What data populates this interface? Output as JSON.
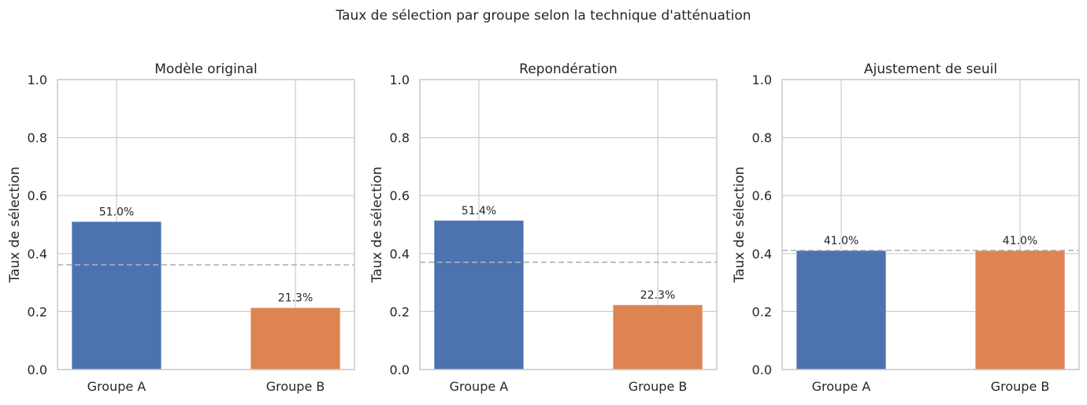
{
  "suptitle": "Taux de sélection par groupe selon la technique d'atténuation",
  "colors": {
    "group_a": "#4c72b0",
    "group_b": "#dd8452",
    "grid": "#cccccc",
    "reference_line": "#b0b0b0"
  },
  "chart_data": [
    {
      "type": "bar",
      "title": "Modèle original",
      "ylabel": "Taux de sélection",
      "xlabel": "",
      "categories": [
        "Groupe A",
        "Groupe B"
      ],
      "values": [
        0.51,
        0.213
      ],
      "data_labels": [
        "51.0%",
        "21.3%"
      ],
      "reference_line": 0.361,
      "ylim": [
        0,
        1.0
      ],
      "yticks": [
        "0.0",
        "0.2",
        "0.4",
        "0.6",
        "0.8",
        "1.0"
      ],
      "grid": true
    },
    {
      "type": "bar",
      "title": "Repondération",
      "ylabel": "Taux de sélection",
      "xlabel": "",
      "categories": [
        "Groupe A",
        "Groupe B"
      ],
      "values": [
        0.514,
        0.223
      ],
      "data_labels": [
        "51.4%",
        "22.3%"
      ],
      "reference_line": 0.37,
      "ylim": [
        0,
        1.0
      ],
      "yticks": [
        "0.0",
        "0.2",
        "0.4",
        "0.6",
        "0.8",
        "1.0"
      ],
      "grid": true
    },
    {
      "type": "bar",
      "title": "Ajustement de seuil",
      "ylabel": "Taux de sélection",
      "xlabel": "",
      "categories": [
        "Groupe A",
        "Groupe B"
      ],
      "values": [
        0.41,
        0.41
      ],
      "data_labels": [
        "41.0%",
        "41.0%"
      ],
      "reference_line": 0.411,
      "ylim": [
        0,
        1.0
      ],
      "yticks": [
        "0.0",
        "0.2",
        "0.4",
        "0.6",
        "0.8",
        "1.0"
      ],
      "grid": true
    }
  ]
}
